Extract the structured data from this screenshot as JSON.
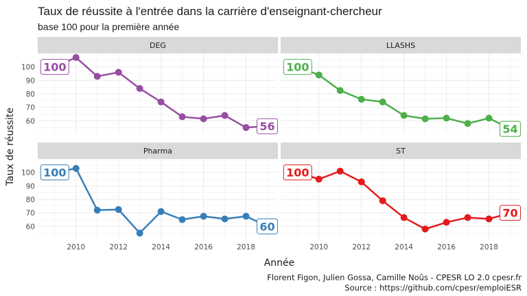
{
  "chart_data": {
    "type": "line",
    "title": "Taux de réussite à l'entrée dans la carrière d'enseignant-chercheur",
    "subtitle": "base 100 pour la première année",
    "xlabel": "Année",
    "ylabel": "Taux de réussite",
    "caption": [
      "Florent Figon, Julien Gossa, Camille Noûs - CPESR LO 2.0 cpesr.fr",
      "Source : https://github.com/cpesr/emploiESR"
    ],
    "x": [
      2009,
      2010,
      2011,
      2012,
      2013,
      2014,
      2015,
      2016,
      2017,
      2018,
      2019
    ],
    "x_ticks": [
      2010,
      2012,
      2014,
      2016,
      2018
    ],
    "ylim": [
      50,
      110
    ],
    "y_ticks": [
      60,
      70,
      80,
      90,
      100
    ],
    "grid": true,
    "facets": [
      {
        "name": "DEG",
        "color": "#984ea3",
        "values": [
          100,
          107,
          93,
          96,
          84,
          74,
          63,
          61.5,
          64,
          55,
          56
        ],
        "start_label": "100",
        "end_label": "56"
      },
      {
        "name": "LLASHS",
        "color": "#4daf4a",
        "values": [
          100,
          94,
          82.5,
          76,
          74,
          64,
          61.5,
          62,
          58,
          62,
          54
        ],
        "start_label": "100",
        "end_label": "54"
      },
      {
        "name": "Pharma",
        "color": "#377eb8",
        "values": [
          100,
          103,
          72,
          72.5,
          55,
          71,
          65,
          67.5,
          65.5,
          67.5,
          60
        ],
        "start_label": "100",
        "end_label": "60"
      },
      {
        "name": "ST",
        "color": "#e41a1c",
        "values": [
          100,
          95,
          101,
          93,
          79,
          66.5,
          58,
          63,
          66.5,
          65.5,
          70
        ],
        "start_label": "100",
        "end_label": "70"
      }
    ]
  }
}
